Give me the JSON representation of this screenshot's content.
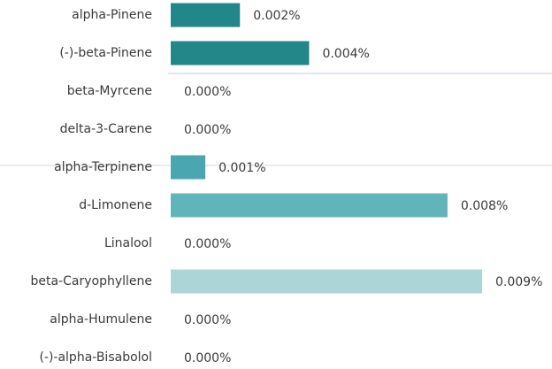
{
  "chart_data": {
    "type": "bar",
    "orientation": "horizontal",
    "categories": [
      "alpha-Pinene",
      "(-)-beta-Pinene",
      "beta-Myrcene",
      "delta-3-Carene",
      "alpha-Terpinene",
      "d-Limonene",
      "Linalool",
      "beta-Caryophyllene",
      "alpha-Humulene",
      "(-)-alpha-Bisabolol"
    ],
    "values": [
      0.002,
      0.004,
      0,
      0,
      0.001,
      0.008,
      0,
      0.009,
      0,
      0
    ],
    "value_labels": [
      "0.002%",
      "0.004%",
      "0.000%",
      "0.000%",
      "0.001%",
      "0.008%",
      "0.000%",
      "0.009%",
      "0.000%",
      "0.000%"
    ],
    "colors": [
      "#23878a",
      "#23878a",
      "#23878a",
      "#23878a",
      "#4aa7b1",
      "#62b4bb",
      "#62b4bb",
      "#abd5d7",
      "#abd5d7",
      "#abd5d7"
    ]
  }
}
